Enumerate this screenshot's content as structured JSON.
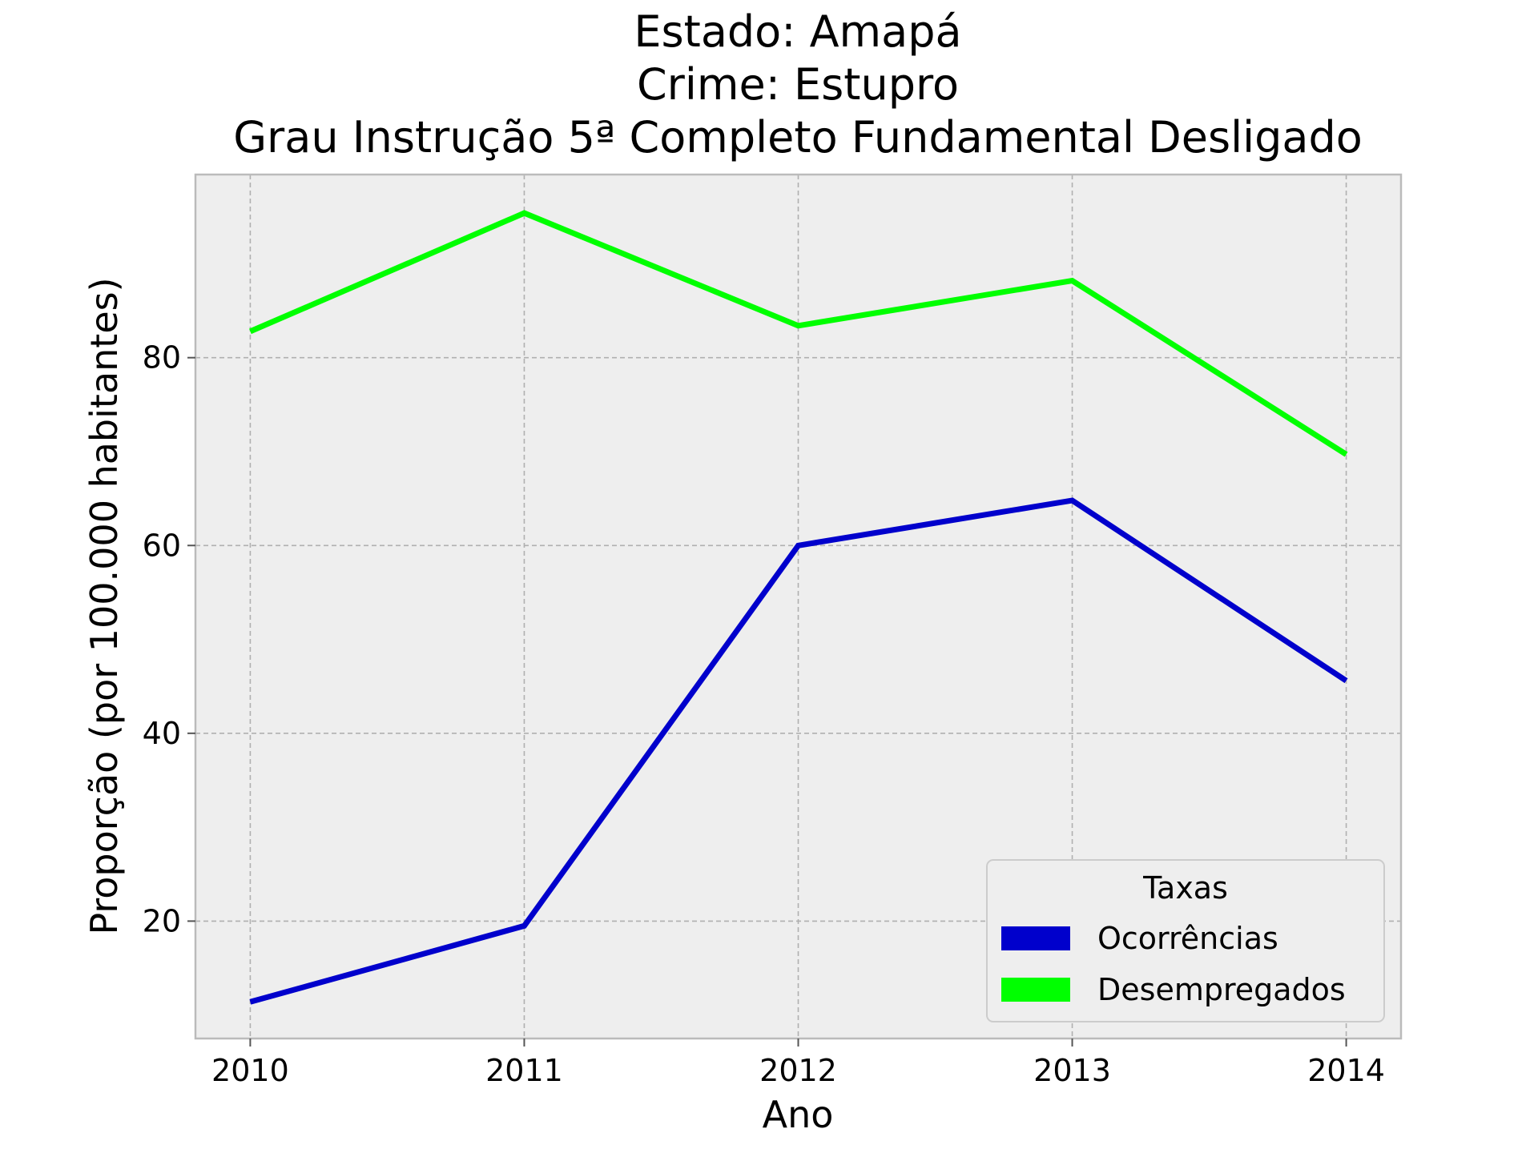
{
  "chart_data": {
    "type": "line",
    "title": [
      "Estado: Amapá",
      "Crime: Estupro",
      "Grau Instrução  5ª Completo Fundamental   Desligado"
    ],
    "xlabel": "Ano",
    "ylabel": "Proporção (por 100.000 habitantes)",
    "x": [
      2010,
      2011,
      2012,
      2013,
      2014
    ],
    "x_ticks": [
      "2010",
      "2011",
      "2012",
      "2013",
      "2014"
    ],
    "y_ticks": [
      20,
      40,
      60,
      80
    ],
    "xlim": [
      2009.8,
      2014.2
    ],
    "ylim": [
      7.5,
      99.5
    ],
    "grid": true,
    "legend": {
      "title": "Taxas",
      "placement": "lower-right"
    },
    "series": [
      {
        "name": "Ocorrências",
        "color": "#0000cc",
        "values": [
          11.4,
          19.5,
          60.0,
          64.8,
          45.6
        ]
      },
      {
        "name": "Desempregados",
        "color": "#00ff00",
        "values": [
          82.8,
          95.4,
          83.4,
          88.2,
          69.7
        ]
      }
    ]
  }
}
